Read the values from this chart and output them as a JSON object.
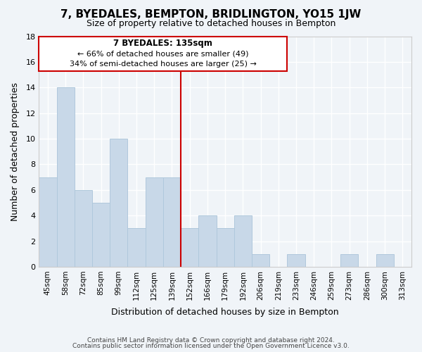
{
  "title": "7, BYEDALES, BEMPTON, BRIDLINGTON, YO15 1JW",
  "subtitle": "Size of property relative to detached houses in Bempton",
  "xlabel": "Distribution of detached houses by size in Bempton",
  "ylabel": "Number of detached properties",
  "bar_color": "#c8d8e8",
  "bar_edge_color": "#b0c8dc",
  "highlight_color": "#cc0000",
  "background_color": "#f0f4f8",
  "grid_color": "#ffffff",
  "categories": [
    "45sqm",
    "58sqm",
    "72sqm",
    "85sqm",
    "99sqm",
    "112sqm",
    "125sqm",
    "139sqm",
    "152sqm",
    "166sqm",
    "179sqm",
    "192sqm",
    "206sqm",
    "219sqm",
    "233sqm",
    "246sqm",
    "259sqm",
    "273sqm",
    "286sqm",
    "300sqm",
    "313sqm"
  ],
  "values": [
    7,
    14,
    6,
    5,
    10,
    3,
    7,
    7,
    3,
    4,
    3,
    4,
    1,
    0,
    1,
    0,
    0,
    1,
    0,
    1,
    0
  ],
  "highlight_index": 7,
  "highlight_label": "7 BYEDALES: 135sqm",
  "annotation_line1": "← 66% of detached houses are smaller (49)",
  "annotation_line2": "34% of semi-detached houses are larger (25) →",
  "ylim": [
    0,
    18
  ],
  "yticks": [
    0,
    2,
    4,
    6,
    8,
    10,
    12,
    14,
    16,
    18
  ],
  "footer_line1": "Contains HM Land Registry data © Crown copyright and database right 2024.",
  "footer_line2": "Contains public sector information licensed under the Open Government Licence v3.0."
}
